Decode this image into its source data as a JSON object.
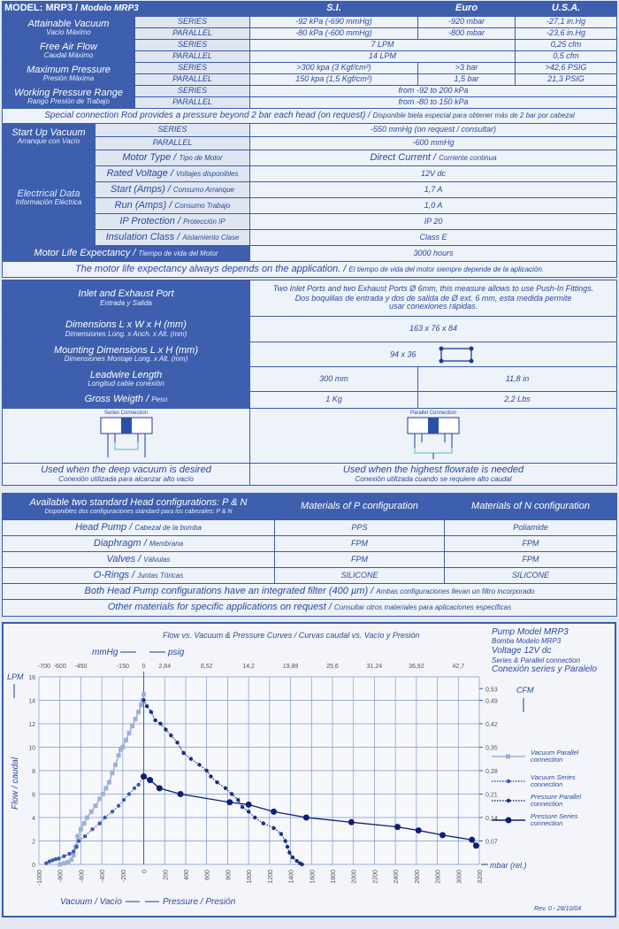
{
  "header": {
    "model": "MODEL: MRP3 / ",
    "model_es": "Modelo MRP3",
    "si": "S.I.",
    "euro": "Euro",
    "usa": "U.S.A."
  },
  "specs": [
    {
      "label": "Attainable Vacuum",
      "label_es": "Vacío Máximo",
      "rows": [
        {
          "mode": "SERIES",
          "si": "-92 kPa (-690 mmHg)",
          "euro": "-920 mbar",
          "usa": "-27,1 in.Hg"
        },
        {
          "mode": "PARALLEL",
          "si": "-80 kPa (-600 mmHg)",
          "euro": "-800 mbar",
          "usa": "-23,6 in.Hg"
        }
      ]
    },
    {
      "label": "Free Air Flow",
      "label_es": "Caudal Máximo",
      "rows": [
        {
          "mode": "SERIES",
          "si": "7 LPM",
          "usa": "0,25 cfm"
        },
        {
          "mode": "PARALLEL",
          "si": "14 LPM",
          "usa": "0,5 cfm"
        }
      ]
    },
    {
      "label": "Maximum Pressure",
      "label_es": "Presión Máxima",
      "rows": [
        {
          "mode": "SERIES",
          "si": ">300 kpa (3 Kgf/cm²)",
          "euro": ">3 bar",
          "usa": ">42,6 PSIG"
        },
        {
          "mode": "PARALLEL",
          "si": "150 kpa (1,5 Kgf/cm²)",
          "euro": "1,5 bar",
          "usa": "21,3 PSIG"
        }
      ]
    },
    {
      "label": "Working Pressure Range",
      "label_es": "Rango Presión de Trabajo",
      "rows": [
        {
          "mode": "SERIES",
          "si": "from -92 to 200 kPa"
        },
        {
          "mode": "PARALLEL",
          "si": "from -80 to 150 kPa"
        }
      ]
    }
  ],
  "special_note": "Special connection Rod provides a pressure beyond 2 bar each head (on request) / ",
  "special_note_es": "Disponible biela especial para obtener más de 2 bar por cabezal",
  "startup": {
    "label": "Start Up Vacuum",
    "label_es": "Arranque con Vacío",
    "series": "SERIES",
    "series_val": "-550 mmHg  (on request / consultar)",
    "parallel": "PARALLEL",
    "parallel_val": "-600 mmHg"
  },
  "electrical": {
    "label": "Electrical Data",
    "label_es": "Información Eléctrica",
    "rows": [
      {
        "label": "Motor Type / ",
        "label_es": "Tipo de Motor",
        "value": "Direct Current / ",
        "value_es": "Corriente continua"
      },
      {
        "label": "Rated Voltage / ",
        "label_es": "Voltajes disponibles",
        "value": "12V dc"
      },
      {
        "label": "Start (Amps) / ",
        "label_es": "Consumo Arranque",
        "value": "1,7 A"
      },
      {
        "label": "Run (Amps) / ",
        "label_es": "Consumo Trabajo",
        "value": "1,0 A"
      },
      {
        "label": "IP Protection / ",
        "label_es": "Protección IP",
        "value": "IP 20"
      },
      {
        "label": "Insulation Class / ",
        "label_es": "Aislamiento Clase",
        "value": "Class E"
      }
    ]
  },
  "motor_life": {
    "label": "Motor Life Expectancy / ",
    "label_es": "Tiempo de vida del Motor",
    "value": "3000 hours"
  },
  "motor_note": "The motor life expectancy always depends on the application. / ",
  "motor_note_es": "El tiempo de vida del motor siempre depende de la aplicación.",
  "physical": {
    "inlet": {
      "label": "Inlet and Exhaust Port",
      "label_es": "Entrada y Salida",
      "value": "Two Inlet Ports and two Exhaust Ports Ø 6mm, this measure allows to use Push-In Fittings.",
      "value_es": "Dos boquillas de entrada y dos de salida de Ø ext. 6 mm, esta medida permite usar conexiones rápidas."
    },
    "dimensions": {
      "label": "Dimensions L x W x H (mm)",
      "label_es": "Dimensiones Long. x Anch. x Alt. (mm)",
      "value": "163 x 76 x 84"
    },
    "mounting": {
      "label": "Mounting Dimensions L x H (mm)",
      "label_es": "Dimensiones Montaje Long. x Alt. (mm)",
      "value": "94 x 36"
    },
    "leadwire": {
      "label": "Leadwire Length",
      "label_es": "Longitud cable conexión",
      "metric": "300 mm",
      "imperial": "11,8 in"
    },
    "weight": {
      "label": "Gross Weigth / ",
      "label_es": "Peso",
      "metric": "1 Kg",
      "imperial": "2,2 Lbs"
    }
  },
  "connections": {
    "series": {
      "title": "Series Connection",
      "caption": "Used when the deep vacuum is desired",
      "caption_es": "Conexión utilizada para alcanzar alto vacío"
    },
    "parallel": {
      "title": "Parallel Connection",
      "caption": "Used when the highest flowrate is needed",
      "caption_es": "Conexión utilizada cuando se requiere alto caudal"
    }
  },
  "materials": {
    "header": "Available two standard Head configurations: P & N",
    "header_es": "Disponibles dos configuraciones stándard para los cabezales: P & N",
    "col_p": "Materials of P configuration",
    "col_n": "Materials of N configuration",
    "rows": [
      {
        "label": "Head Pump / ",
        "label_es": "Cabezal de la bomba",
        "p": "PPS",
        "n": "Poliamide"
      },
      {
        "label": "Diaphragm / ",
        "label_es": "Membrana",
        "p": "FPM",
        "n": "FPM"
      },
      {
        "label": "Valves / ",
        "label_es": "Válvulas",
        "p": "FPM",
        "n": "FPM"
      },
      {
        "label": "O-Rings / ",
        "label_es": "Juntas Tóricas",
        "p": "SILICONE",
        "n": "SILICONE"
      }
    ],
    "filter_note": "Both Head Pump configurations have an integrated filter (400 µm) / ",
    "filter_note_es": "Ambas configuraciones llevan un filtro incorporado",
    "other_note": "Other materials for specific applications on request / ",
    "other_note_es": "Consultar otros materiales para aplicaciones específicas"
  },
  "chart_data": {
    "type": "line",
    "title": "Flow vs. Vacuum & Pressure Curves / Curvas caudal vs. Vacío y Presión",
    "info": [
      "Pump Model MRP3",
      "Bomba Modelo MRP3",
      "Voltage 12V dc",
      "Series & Parallel connection",
      "Conexión series y Paralelo"
    ],
    "xlabel": "mbar (rel.)",
    "xlabel_left": "Vacuum / Vacío",
    "xlabel_right": "Pressure / Presión",
    "ylabel": "Flow / caudal",
    "yunit": "LPM",
    "y2unit": "CFM",
    "top_unit_left": "mmHg",
    "top_unit_right": "psig",
    "xlim": [
      -1000,
      3200
    ],
    "ylim": [
      0,
      16
    ],
    "grid": true,
    "legend": "right",
    "xticks": [
      -1000,
      -800,
      -600,
      -400,
      -200,
      0,
      200,
      400,
      600,
      800,
      1000,
      1200,
      1400,
      1600,
      1800,
      2000,
      2200,
      2400,
      2600,
      2800,
      3000,
      3200
    ],
    "yticks": [
      0,
      2,
      4,
      6,
      8,
      10,
      12,
      14,
      16
    ],
    "top_ticks": [
      {
        "label": "-700",
        "at": -950
      },
      {
        "label": "-600",
        "at": -800
      },
      {
        "label": "-450",
        "at": -600
      },
      {
        "label": "-150",
        "at": -200
      },
      {
        "label": "0",
        "at": 0
      },
      {
        "label": "2,84",
        "at": 200
      },
      {
        "label": "8,52",
        "at": 600
      },
      {
        "label": "14,2",
        "at": 1000
      },
      {
        "label": "19,88",
        "at": 1400
      },
      {
        "label": "25,6",
        "at": 1800
      },
      {
        "label": "31,24",
        "at": 2200
      },
      {
        "label": "36,92",
        "at": 2600
      },
      {
        "label": "42,7",
        "at": 3000
      }
    ],
    "right_ticks": [
      {
        "label": "0,53",
        "at": 15
      },
      {
        "label": "0,49",
        "at": 14
      },
      {
        "label": "0,42",
        "at": 12
      },
      {
        "label": "0,35",
        "at": 10
      },
      {
        "label": "0,28",
        "at": 8
      },
      {
        "label": "0,21",
        "at": 6
      },
      {
        "label": "0,14",
        "at": 4
      },
      {
        "label": "0,07",
        "at": 2
      }
    ],
    "series": [
      {
        "name": "Vacuum Parallel connection",
        "color": "#9fb0d6",
        "style": "square",
        "x": [
          -800,
          -760,
          -720,
          -690,
          -670,
          -650,
          -630,
          -600,
          -570,
          -540,
          -500,
          -460,
          -420,
          -390,
          -360,
          -330,
          -300,
          -270,
          -240,
          -220,
          -200,
          -170,
          -140,
          -110,
          -80,
          -50,
          -25,
          -10,
          0
        ],
        "y": [
          0,
          0.1,
          0.2,
          0.4,
          0.8,
          1.5,
          2.4,
          3,
          3.5,
          4,
          4.5,
          5,
          5.6,
          6,
          6.5,
          7,
          7.8,
          8.5,
          9.3,
          9.8,
          10,
          10.6,
          11.2,
          11.8,
          12.4,
          13,
          13.6,
          14,
          14.5
        ]
      },
      {
        "name": "Vacuum Series connection",
        "color": "#3a5cae",
        "style": "dotted",
        "x": [
          -930,
          -900,
          -870,
          -840,
          -810,
          -760,
          -710,
          -670,
          -640,
          -620,
          -560,
          -490,
          -420,
          -370,
          -300,
          -240,
          -190,
          -140,
          -90,
          -50,
          0
        ],
        "y": [
          0.1,
          0.25,
          0.35,
          0.45,
          0.5,
          0.7,
          0.9,
          1.1,
          1.5,
          2,
          2.4,
          3,
          3.5,
          4,
          4.5,
          5,
          5.5,
          6,
          6.5,
          6.8,
          7.5
        ]
      },
      {
        "name": "Pressure Parallel connection",
        "color": "#1a2e80",
        "style": "dotted",
        "x": [
          0,
          30,
          70,
          110,
          160,
          210,
          260,
          320,
          380,
          450,
          530,
          600,
          640,
          700,
          780,
          840,
          900,
          940,
          1000,
          1060,
          1140,
          1240,
          1310,
          1350,
          1370,
          1390,
          1420,
          1460,
          1490,
          1510
        ],
        "y": [
          14,
          13.5,
          13,
          12.3,
          12,
          11.5,
          11,
          10.4,
          9.5,
          9,
          8.5,
          8,
          7.5,
          7,
          6.5,
          6,
          5.5,
          4.9,
          4.5,
          4,
          3.5,
          3.1,
          2.6,
          2,
          1.5,
          1,
          0.6,
          0.3,
          0.1,
          0
        ]
      },
      {
        "name": "Pressure Series connection",
        "color": "#0e1f78",
        "style": "solid",
        "x": [
          0,
          60,
          150,
          350,
          820,
          1000,
          1240,
          1550,
          1980,
          2420,
          2620,
          2850,
          3130,
          3170
        ],
        "y": [
          7.5,
          7.2,
          6.5,
          6,
          5.3,
          5.1,
          4.5,
          4,
          3.6,
          3.2,
          2.9,
          2.5,
          2.1,
          1.6
        ]
      }
    ]
  },
  "revision": "Rev. 0 - 28/10/04"
}
